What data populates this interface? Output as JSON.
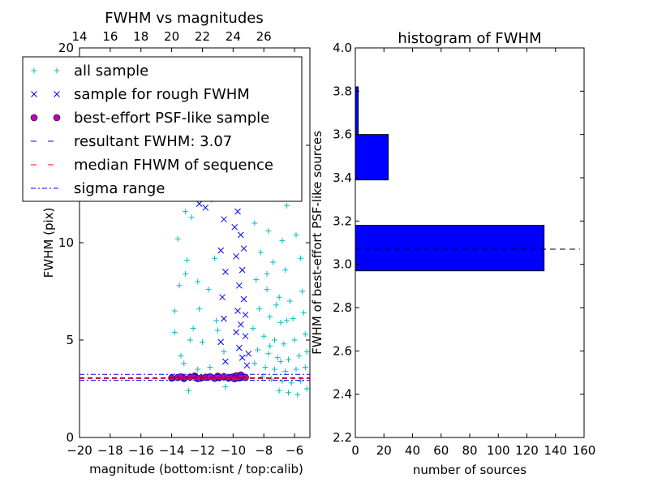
{
  "chart_data": [
    {
      "type": "scatter",
      "title": "FWHM vs magnitudes",
      "xlabel": "magnitude (bottom:isnt / top:calib)",
      "ylabel": "FWHM (pix)",
      "xlim": [
        -20,
        -5
      ],
      "ylim": [
        0,
        20
      ],
      "x_ticks": [
        -20,
        -18,
        -16,
        -14,
        -12,
        -10,
        -8,
        -6
      ],
      "x_tick_labels": [
        "−20",
        "−18",
        "−16",
        "−14",
        "−12",
        "−10",
        "−8",
        "−6"
      ],
      "y_ticks": [
        0,
        5,
        10,
        15,
        20
      ],
      "y_tick_labels": [
        "0",
        "5",
        "10",
        "",
        "20"
      ],
      "top_axis": {
        "offset": 34,
        "ticks": [
          14,
          16,
          18,
          20,
          22,
          24,
          26
        ],
        "tick_labels": [
          "14",
          "16",
          "18",
          "20",
          "22",
          "24",
          "26"
        ]
      },
      "legend": {
        "placement": "upper-left",
        "entries": [
          {
            "label": "all sample",
            "marker": "plus",
            "color": "#00bfbf"
          },
          {
            "label": "sample for rough FWHM",
            "marker": "x",
            "color": "#0000ff"
          },
          {
            "label": "best-effort PSF-like sample",
            "marker": "circle",
            "color": "#bf00bf"
          },
          {
            "label": "resultant FWHM: 3.07",
            "marker": "dash",
            "color": "#0000ff"
          },
          {
            "label": "median FHWM of sequence",
            "marker": "dash",
            "color": "#ff0000"
          },
          {
            "label": "sigma range",
            "marker": "dashdot",
            "color": "#0000ff"
          }
        ]
      },
      "resultant_fwhm": 3.07,
      "median_fwhm": 3.07,
      "sigma_range": [
        2.93,
        3.24
      ],
      "series": [
        {
          "name": "all sample",
          "points": [
            [
              -13.2,
              17.5
            ],
            [
              -12.5,
              16.2
            ],
            [
              -13.1,
              11.6
            ],
            [
              -12.1,
              16.4
            ],
            [
              -11.8,
              15.5
            ],
            [
              -12.7,
              11.3
            ],
            [
              -11.4,
              12.2
            ],
            [
              -10.8,
              14.0
            ],
            [
              -13.6,
              10.2
            ],
            [
              -13.5,
              7.8
            ],
            [
              -13.1,
              8.4
            ],
            [
              -12.3,
              8.0
            ],
            [
              -11.6,
              7.6
            ],
            [
              -12.6,
              5.6
            ],
            [
              -11.1,
              6.0
            ],
            [
              -13.4,
              4.2
            ],
            [
              -12.0,
              4.9
            ],
            [
              -10.6,
              4.4
            ],
            [
              -13.8,
              6.5
            ],
            [
              -12.8,
              5.0
            ],
            [
              -11.2,
              9.2
            ],
            [
              -13.2,
              3.8
            ],
            [
              -12.3,
              3.5
            ],
            [
              -12.9,
              2.4
            ],
            [
              -11.5,
              3.6
            ],
            [
              -10.5,
              2.6
            ],
            [
              -13.8,
              5.4
            ],
            [
              -12.2,
              6.6
            ],
            [
              -11.0,
              5.5
            ],
            [
              -13.0,
              9.1
            ],
            [
              -8.8,
              19.0
            ],
            [
              -8.4,
              17.2
            ],
            [
              -7.9,
              18.6
            ],
            [
              -7.5,
              16.1
            ],
            [
              -6.9,
              15.0
            ],
            [
              -6.2,
              14.1
            ],
            [
              -8.0,
              13.6
            ],
            [
              -7.2,
              12.4
            ],
            [
              -6.5,
              11.9
            ],
            [
              -5.8,
              12.8
            ],
            [
              -8.6,
              11.0
            ],
            [
              -7.7,
              10.6
            ],
            [
              -6.8,
              10.1
            ],
            [
              -5.9,
              10.4
            ],
            [
              -8.2,
              9.5
            ],
            [
              -7.4,
              9.0
            ],
            [
              -6.6,
              8.6
            ],
            [
              -5.6,
              9.2
            ],
            [
              -8.5,
              8.1
            ],
            [
              -7.8,
              7.6
            ],
            [
              -7.0,
              7.2
            ],
            [
              -6.3,
              7.0
            ],
            [
              -5.5,
              7.5
            ],
            [
              -8.3,
              6.6
            ],
            [
              -7.6,
              6.2
            ],
            [
              -6.9,
              5.9
            ],
            [
              -6.1,
              6.1
            ],
            [
              -5.4,
              6.4
            ],
            [
              -8.7,
              5.6
            ],
            [
              -8.0,
              5.2
            ],
            [
              -7.3,
              5.0
            ],
            [
              -6.7,
              4.8
            ],
            [
              -6.0,
              5.0
            ],
            [
              -5.3,
              5.3
            ],
            [
              -8.4,
              4.5
            ],
            [
              -7.7,
              4.3
            ],
            [
              -7.1,
              4.1
            ],
            [
              -6.4,
              4.0
            ],
            [
              -5.7,
              4.2
            ],
            [
              -5.2,
              4.4
            ],
            [
              -8.6,
              3.8
            ],
            [
              -7.9,
              3.6
            ],
            [
              -7.3,
              3.5
            ],
            [
              -6.6,
              3.4
            ],
            [
              -5.9,
              3.5
            ],
            [
              -5.3,
              3.6
            ],
            [
              -8.1,
              3.1
            ],
            [
              -7.5,
              3.0
            ],
            [
              -6.8,
              2.9
            ],
            [
              -6.2,
              2.8
            ],
            [
              -5.6,
              2.9
            ],
            [
              -7.0,
              2.4
            ],
            [
              -6.4,
              2.3
            ],
            [
              -5.8,
              2.2
            ],
            [
              -5.2,
              2.5
            ],
            [
              -7.8,
              8.4
            ],
            [
              -7.2,
              6.8
            ],
            [
              -6.5,
              6.0
            ],
            [
              -7.6,
              4.7
            ],
            [
              -6.9,
              3.9
            ]
          ]
        },
        {
          "name": "sample for rough FWHM",
          "points": [
            [
              -10.8,
              18.6
            ],
            [
              -10.6,
              16.9
            ],
            [
              -10.9,
              15.2
            ],
            [
              -10.5,
              14.1
            ],
            [
              -10.7,
              12.5
            ],
            [
              -10.6,
              11.2
            ],
            [
              -10.8,
              9.6
            ],
            [
              -10.5,
              8.5
            ],
            [
              -10.7,
              7.2
            ],
            [
              -10.6,
              6.1
            ],
            [
              -10.8,
              4.9
            ],
            [
              -10.5,
              3.9
            ],
            [
              -11.8,
              11.8
            ],
            [
              -12.2,
              12.0
            ],
            [
              -9.9,
              13.1
            ],
            [
              -9.7,
              11.6
            ],
            [
              -9.5,
              10.4
            ],
            [
              -9.8,
              9.3
            ],
            [
              -9.4,
              8.6
            ],
            [
              -9.6,
              7.8
            ],
            [
              -9.3,
              7.1
            ],
            [
              -9.7,
              6.5
            ],
            [
              -9.5,
              5.8
            ],
            [
              -9.2,
              5.2
            ],
            [
              -9.6,
              4.6
            ],
            [
              -9.4,
              4.1
            ],
            [
              -9.1,
              3.7
            ],
            [
              -9.8,
              5.4
            ],
            [
              -9.3,
              9.7
            ],
            [
              -9.9,
              10.8
            ],
            [
              -9.2,
              6.3
            ],
            [
              -9.0,
              4.3
            ]
          ]
        },
        {
          "name": "best-effort PSF-like sample",
          "points": [
            [
              -14.0,
              3.05
            ],
            [
              -13.6,
              3.08
            ],
            [
              -13.2,
              3.03
            ],
            [
              -12.8,
              3.1
            ],
            [
              -12.5,
              3.16
            ],
            [
              -12.1,
              3.05
            ],
            [
              -11.8,
              3.09
            ],
            [
              -11.5,
              3.12
            ],
            [
              -11.2,
              3.04
            ],
            [
              -10.9,
              3.07
            ],
            [
              -10.6,
              3.13
            ],
            [
              -10.3,
              3.05
            ],
            [
              -10.0,
              3.11
            ],
            [
              -9.8,
              3.17
            ],
            [
              -9.6,
              3.06
            ],
            [
              -9.4,
              3.14
            ],
            [
              -9.2,
              3.08
            ],
            [
              -13.4,
              3.12
            ],
            [
              -12.3,
              3.02
            ],
            [
              -11.0,
              3.15
            ],
            [
              -9.9,
              3.01
            ],
            [
              -9.5,
              3.21
            ]
          ]
        }
      ]
    },
    {
      "type": "bar",
      "orientation": "horizontal",
      "title": "histogram of FWHM",
      "xlabel": "number of sources",
      "ylabel": "FWHM of best-effort PSF-like sources",
      "xlim": [
        0,
        160
      ],
      "ylim": [
        2.2,
        4.0
      ],
      "x_ticks": [
        0,
        20,
        40,
        60,
        80,
        100,
        120,
        140,
        160
      ],
      "y_ticks": [
        2.2,
        2.4,
        2.6,
        2.8,
        3.0,
        3.2,
        3.4,
        3.6,
        3.8,
        4.0
      ],
      "y_tick_labels": [
        "2.2",
        "2.4",
        "2.6",
        "2.8",
        "3.0",
        "3.2",
        "3.4",
        "3.6",
        "3.8",
        "4.0"
      ],
      "x_tick_labels": [
        "0",
        "20",
        "40",
        "60",
        "80",
        "100",
        "120",
        "140",
        "160"
      ],
      "bar_color": "#0000ff",
      "bins": [
        {
          "low": 2.97,
          "high": 3.18,
          "count": 132
        },
        {
          "low": 3.18,
          "high": 3.39,
          "count": 0
        },
        {
          "low": 3.39,
          "high": 3.6,
          "count": 23
        },
        {
          "low": 3.6,
          "high": 3.82,
          "count": 2
        },
        {
          "low": 3.6,
          "high": 3.82,
          "count": 0
        }
      ],
      "reference_line": 3.07
    }
  ]
}
